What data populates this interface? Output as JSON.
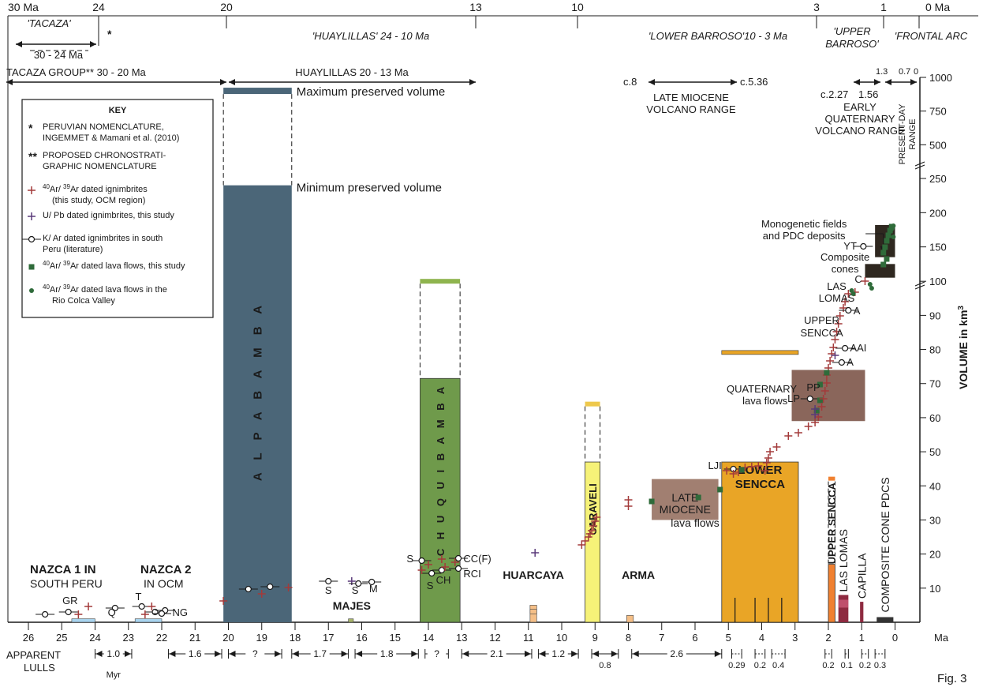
{
  "chart_data": {
    "type": "bar",
    "figure_label": "Fig. 3",
    "xlabel": "Ma",
    "ylabel": "VOLUME in km3",
    "ylabel_main": "VOLUME in km",
    "ylabel_sup": "3",
    "x_axis": {
      "range": [
        26.5,
        0
      ],
      "ticks": [
        "26",
        "25",
        "24",
        "23",
        "22",
        "21",
        "20",
        "19",
        "18",
        "17",
        "16",
        "15",
        "14",
        "13",
        "12",
        "11",
        "10",
        "9",
        "8",
        "7",
        "6",
        "5",
        "4",
        "3",
        "2",
        "1",
        "0"
      ]
    },
    "y_axis": {
      "lower_range": [
        0,
        100
      ],
      "lower_ticks": [
        "10",
        "20",
        "30",
        "40",
        "50",
        "60",
        "70",
        "80",
        "90",
        "100"
      ],
      "mid_range": [
        100,
        250
      ],
      "mid_ticks": [
        "150",
        "200",
        "250"
      ],
      "upper_range": [
        250,
        1000
      ],
      "upper_ticks": [
        "500",
        "750",
        "1000"
      ]
    },
    "top_axis": [
      {
        "value": 30,
        "label": "30 Ma"
      },
      {
        "value": 24,
        "label": "24"
      },
      {
        "value": 20,
        "label": "20"
      },
      {
        "value": 13,
        "label": "13"
      },
      {
        "value": 10,
        "label": "10"
      },
      {
        "value": 3,
        "label": "3"
      },
      {
        "value": 1,
        "label": "1"
      },
      {
        "value": 0,
        "label": "0 Ma"
      }
    ],
    "periods": [
      {
        "label": "'TACAZA'",
        "star": "*",
        "range": "30 - 24 Ma"
      },
      {
        "label": "'HUAYLILLAS' 24 - 10 Ma"
      },
      {
        "label": "'LOWER BARROSO'10 - 3 Ma"
      },
      {
        "label1": "'UPPER",
        "label2": "BARROSO'"
      },
      {
        "label": "'FRONTAL ARC"
      }
    ],
    "groups": [
      {
        "label": "TACAZA GROUP**  30 - 20 Ma"
      },
      {
        "label": "HUAYLILLAS 20 - 13 Ma"
      }
    ],
    "volcano_ranges": [
      {
        "start_label": "c.8",
        "end_label": "c.5.36",
        "line1": "LATE MIOCENE",
        "line2": "VOLCANO RANGE",
        "from": 8,
        "to": 5.36
      },
      {
        "start_label": "c.2.27",
        "end_label": "1.56",
        "line1": "EARLY",
        "line2": "QUATERNARY",
        "line3": "VOLCANO RANGE",
        "from": 2.27,
        "to": 1.56
      },
      {
        "labels": [
          "1.3",
          "0.7",
          "0"
        ],
        "line1": "PRESENT-DAY",
        "line2": "RANGE",
        "from": 1.3,
        "to": 0
      }
    ],
    "bars": [
      {
        "name": "ALPABAMBA",
        "label": "A L P A B A M B A",
        "x0": 20.15,
        "x1": 18.1,
        "value_min": 240,
        "value_max": 900,
        "color": "#4b6678",
        "cap_color": "#4b6678"
      },
      {
        "name": "CHUQUIBAMBA",
        "label": "C H U Q U I B A M B A",
        "x0": 14.25,
        "x1": 13.05,
        "value_min": 71.5,
        "value_max": 100,
        "color": "#6f9a4b",
        "cap_color": "#8fb44e"
      },
      {
        "name": "CARAVELI",
        "label": "CARAVELI",
        "x0": 9.3,
        "x1": 8.85,
        "value_min": 47,
        "value_max": 64,
        "color": "#f6f278",
        "cap_color": "#eec84c"
      },
      {
        "name": "LOWER SENCCA",
        "label1": "LOWER",
        "label2": "SENCCA",
        "x0": 5.2,
        "x1": 2.9,
        "value_min": 47,
        "value_max": 79,
        "color": "#e9a526",
        "cap_color": "#e9a526"
      },
      {
        "name": "UPPER SENCCA",
        "label": "UPPER SENCCA",
        "x0": 2.0,
        "x1": 1.8,
        "value_min": 17,
        "value_max": 42,
        "color": "#f08030",
        "cap_color": "#f08030"
      },
      {
        "name": "LAS LOMAS",
        "label": "LAS LOMAS",
        "x0": 1.7,
        "x1": 1.4,
        "value_min": 8,
        "value_max": 8,
        "color": "#8e2a40",
        "cap_color": "#8e2a40"
      },
      {
        "name": "CAPILLA",
        "label": "CAPILLA",
        "x0": 1.05,
        "x1": 0.95,
        "value_min": 6,
        "value_max": 6,
        "color": "#8e2a40",
        "cap_color": "#8e2a40"
      },
      {
        "name": "COMPOSITE CONE PDCS",
        "label": "COMPOSITE CONE PDCS",
        "x0": 0.55,
        "x1": 0.05,
        "value_min": 1.5,
        "value_max": 1.5,
        "color": "#333333",
        "cap_color": "#333333"
      },
      {
        "name": "HUARCAYA",
        "label": "HUARCAYA",
        "x0": 10.95,
        "x1": 10.75,
        "value_min": 2,
        "value_max": 5,
        "color": "#f5bf87",
        "cap_color": "#f5bf87"
      },
      {
        "name": "ARMA",
        "label": "ARMA",
        "x0": 8.05,
        "x1": 7.85,
        "value_min": 2,
        "value_max": 2,
        "color": "#f5bf87",
        "cap_color": "#f5bf87"
      },
      {
        "name": "MAJES",
        "label": "MAJES",
        "x0": 16.4,
        "x1": 16.25,
        "value_min": 1,
        "value_max": 1,
        "color": "#a8b56a",
        "cap_color": "#a8b56a"
      },
      {
        "name": "NAZCA 1",
        "label": "",
        "x0": 24.7,
        "x1": 24.0,
        "value_min": 1,
        "value_max": 1,
        "color": "#a8d4ef",
        "cap_color": "#a8d4ef"
      },
      {
        "name": "NAZCA 2",
        "label": "",
        "x0": 22.8,
        "x1": 22.0,
        "value_min": 1,
        "value_max": 1,
        "color": "#a8d4ef",
        "cap_color": "#a8d4ef"
      }
    ],
    "volume_labels": {
      "max": "Maximum preserved volume",
      "min": "Minimum preserved volume"
    },
    "boxes": [
      {
        "line1": "LATE",
        "line2": "MIOCENE",
        "line3": "lava flows",
        "x0": 7.3,
        "x1": 5.3,
        "y0": 30,
        "y1": 42,
        "color": "#8a5f4d"
      },
      {
        "line1": "QUATERNARY",
        "line2": "lava flows",
        "x0": 3.1,
        "x1": 0.9,
        "y0": 59,
        "y1": 74,
        "color": "#6d4032"
      },
      {
        "line1": "Monogenetic fields",
        "line2": "and PDC deposits",
        "x0": 0.6,
        "x1": 0.0,
        "y0": 135,
        "y1": 182,
        "color": "#2f2820"
      },
      {
        "line1": "Composite",
        "line2": "cones",
        "x0": 0.9,
        "x1": 0.0,
        "y0": 105,
        "y1": 125,
        "color": "#2f2820"
      }
    ],
    "point_labels": [
      "GR",
      "Q",
      "T",
      "NG",
      "S",
      "S",
      "M",
      "S",
      "S",
      "CH",
      "CC(F)",
      "RCI",
      "LJI",
      "LP",
      "PP",
      "A",
      "AAI",
      "A",
      "YT",
      "LAS",
      "LOMAS",
      "UPPER",
      "SENCCA",
      "C"
    ],
    "legend": {
      "title": "KEY",
      "items": [
        {
          "sym": "*",
          "line1": "PERUVIAN NOMENCLATURE,",
          "line2": "INGEMMET & Mamani et al. (2010)"
        },
        {
          "sym": "**",
          "line1": "PROPOSED CHRONOSTRATI-",
          "line2": "GRAPHIC NOMENCLATURE"
        },
        {
          "sym": "cross-red",
          "sup1": "40",
          "t1": "Ar/ ",
          "sup2": "39",
          "t2": "Ar dated ignimbrites",
          "line2": "(this study, OCM region)"
        },
        {
          "sym": "cross-purple",
          "line1": "U/ Pb dated ignimbrites, this study"
        },
        {
          "sym": "circle",
          "line1": "K/ Ar dated ignimbrites in south",
          "line2": "Peru (literature)"
        },
        {
          "sym": "square",
          "sup1": "40",
          "t1": "Ar/ ",
          "sup2": "39",
          "t2": "Ar dated lava flows, this study"
        },
        {
          "sym": "dot",
          "sup1": "40",
          "t1": "Ar/ ",
          "sup2": "39",
          "t2": "Ar dated lava flows in the",
          "line2": "Rio Colca Valley"
        }
      ]
    },
    "region_labels": [
      {
        "line1": "NAZCA 1 IN",
        "line2": "SOUTH PERU"
      },
      {
        "line1": "NAZCA 2",
        "line2": "IN OCM"
      }
    ],
    "lulls_label": {
      "line1": "APPARENT",
      "line2": "LULLS"
    },
    "lulls": [
      {
        "label": "1.0",
        "sub": "Myr",
        "from": 24.0,
        "to": 22.9
      },
      {
        "label": "1.6",
        "from": 21.8,
        "to": 20.2
      },
      {
        "label": "?",
        "from": 20.0,
        "to": 18.4
      },
      {
        "label": "1.7",
        "from": 18.1,
        "to": 16.4
      },
      {
        "label": "1.8",
        "from": 16.2,
        "to": 14.3
      },
      {
        "label": "?",
        "from": 14.1,
        "to": 13.4
      },
      {
        "label": "2.1",
        "from": 13.0,
        "to": 10.9
      },
      {
        "label": "1.2",
        "from": 10.7,
        "to": 9.5
      },
      {
        "label": "0.8",
        "from": 9.1,
        "to": 8.3
      },
      {
        "label": "2.6",
        "from": 7.9,
        "to": 5.2
      },
      {
        "label": "0.29",
        "from": 4.9,
        "to": 4.6
      },
      {
        "label": "0.2",
        "from": 4.2,
        "to": 3.9
      },
      {
        "label": "0.4",
        "from": 3.7,
        "to": 3.3
      },
      {
        "label": "0.2",
        "from": 2.1,
        "to": 1.9
      },
      {
        "label": "0.1",
        "from": 1.5,
        "to": 1.4
      },
      {
        "label": "0.2",
        "from": 1.0,
        "to": 0.8
      },
      {
        "label": "0.3",
        "from": 0.6,
        "to": 0.3
      }
    ]
  }
}
